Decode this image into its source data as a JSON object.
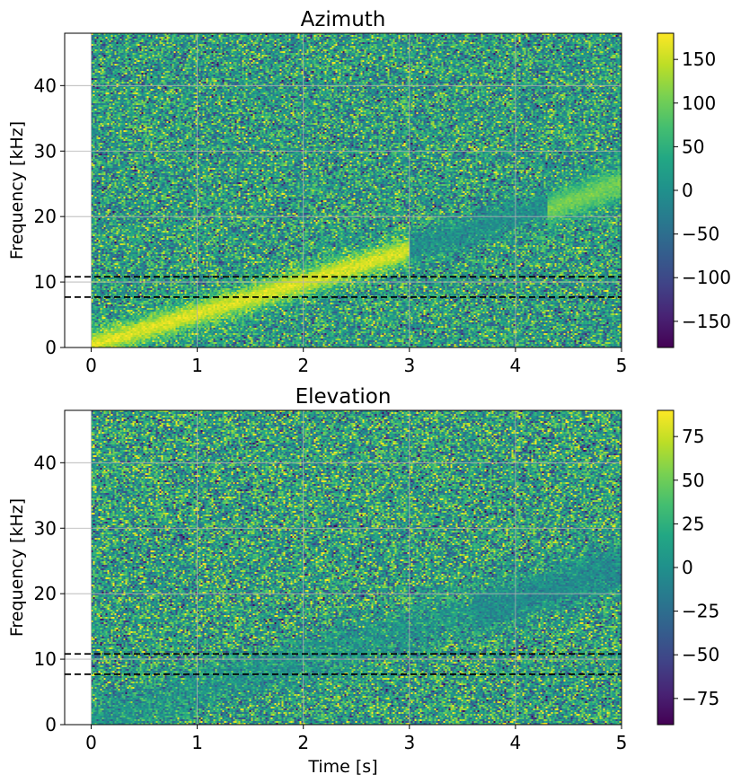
{
  "chart_data": [
    {
      "type": "heatmap",
      "title": "Azimuth",
      "xlabel": "",
      "ylabel": "Frequency [kHz]",
      "xlim": [
        -0.25,
        5
      ],
      "ylim": [
        0,
        48
      ],
      "data_x_range": [
        0,
        5
      ],
      "x_ticks": [
        0,
        1,
        2,
        3,
        4,
        5
      ],
      "y_ticks": [
        0,
        10,
        20,
        30,
        40
      ],
      "grid": true,
      "colormap": "viridis",
      "colorbar": {
        "range": [
          -180,
          180
        ],
        "ticks": [
          150,
          100,
          50,
          0,
          -50,
          -100,
          -150
        ]
      },
      "background_mean": 20,
      "noise_spread": 70,
      "features": [
        {
          "kind": "chirp",
          "t0": 0,
          "f0": 0.3,
          "t1": 3,
          "f1": 14.8,
          "value": 160,
          "half_width_khz": 2.2,
          "strength": 1.0
        },
        {
          "kind": "chirp",
          "t0": 3,
          "f0": 15,
          "t1": 5,
          "f1": 25,
          "value": -15,
          "half_width_khz": 2.5,
          "strength": 0.7
        },
        {
          "kind": "chirp",
          "t0": 4.3,
          "f0": 21,
          "t1": 5,
          "f1": 25,
          "value": 125,
          "half_width_khz": 2.5,
          "strength": 0.85
        }
      ],
      "reference_lines": [
        {
          "y": 10.8,
          "style": "dashed"
        },
        {
          "y": 7.7,
          "style": "dashed"
        }
      ]
    },
    {
      "type": "heatmap",
      "title": "Elevation",
      "xlabel": "Time [s]",
      "ylabel": "Frequency [kHz]",
      "xlim": [
        -0.25,
        5
      ],
      "ylim": [
        0,
        48
      ],
      "data_x_range": [
        0,
        5
      ],
      "x_ticks": [
        0,
        1,
        2,
        3,
        4,
        5
      ],
      "y_ticks": [
        0,
        10,
        20,
        30,
        40
      ],
      "grid": true,
      "colormap": "viridis",
      "colorbar": {
        "range": [
          -90,
          90
        ],
        "ticks": [
          75,
          50,
          25,
          0,
          -25,
          -50,
          -75
        ]
      },
      "background_mean": 12,
      "noise_spread": 38,
      "features": [
        {
          "kind": "chirp",
          "t0": 0,
          "f0": 0.5,
          "t1": 5,
          "f1": 24,
          "value": 0,
          "half_width_khz": 3.5,
          "strength": 0.55
        },
        {
          "kind": "chirp",
          "t0": 3.6,
          "f0": 17,
          "t1": 5,
          "f1": 24,
          "value": -12,
          "half_width_khz": 3.0,
          "strength": 0.5
        }
      ],
      "reference_lines": [
        {
          "y": 10.8,
          "style": "dashed"
        },
        {
          "y": 7.7,
          "style": "dashed"
        }
      ]
    }
  ]
}
